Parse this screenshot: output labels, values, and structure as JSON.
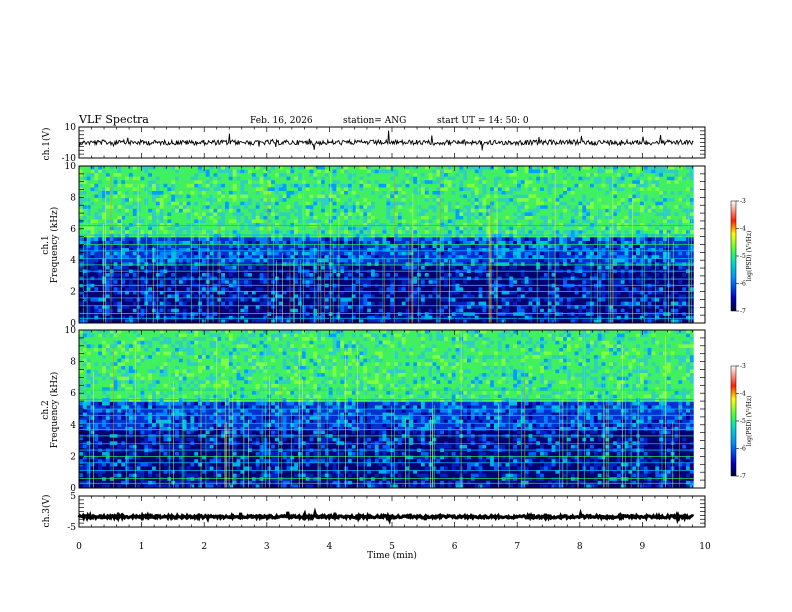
{
  "header": {
    "title": "VLF Spectra",
    "date": "Feb. 16, 2026",
    "station": "station= ANG",
    "start_ut": "start  UT =   14: 50: 0"
  },
  "chart_data": [
    {
      "type": "line",
      "panel": "ch1-waveform",
      "ylabel": "ch.1(V)",
      "ylim": [
        -10,
        10
      ],
      "y_tick_labels": [
        "10",
        "-10"
      ],
      "baseline": 0,
      "x_range_min": [
        0,
        9.82
      ]
    },
    {
      "type": "heatmap",
      "panel": "ch1-spectrogram",
      "ylabel_channel": "ch.1",
      "ylabel": "Frequency (kHz)",
      "ylim": [
        0,
        10
      ],
      "y_tick_labels": [
        "0",
        "2",
        "4",
        "6",
        "8",
        "10"
      ],
      "colorbar": {
        "label": "log(PSD) (V²/Hz)",
        "range": [
          -7,
          -3
        ],
        "tick_labels": [
          "-3",
          "-4",
          "-5",
          "-6",
          "-7"
        ]
      }
    },
    {
      "type": "heatmap",
      "panel": "ch2-spectrogram",
      "ylabel_channel": "ch.2",
      "ylabel": "Frequency (kHz)",
      "ylim": [
        0,
        10
      ],
      "y_tick_labels": [
        "0",
        "2",
        "4",
        "6",
        "8",
        "10"
      ],
      "colorbar": {
        "label": "log(PSD) (V²/Hz)",
        "range": [
          -7,
          -3
        ],
        "tick_labels": [
          "-3",
          "-4",
          "-5",
          "-6",
          "-7"
        ]
      }
    },
    {
      "type": "line",
      "panel": "ch3-waveform",
      "ylabel": "ch.3(V)",
      "ylim": [
        -5,
        5
      ],
      "y_tick_labels": [
        "5",
        "-5"
      ],
      "baseline": -1.7,
      "x_range_min": [
        0,
        9.82
      ]
    }
  ],
  "xaxis": {
    "xlabel": "Time (min)",
    "xlim": [
      0,
      10
    ],
    "tick_labels": [
      "0",
      "1",
      "2",
      "3",
      "4",
      "5",
      "6",
      "7",
      "8",
      "9",
      "10"
    ]
  }
}
